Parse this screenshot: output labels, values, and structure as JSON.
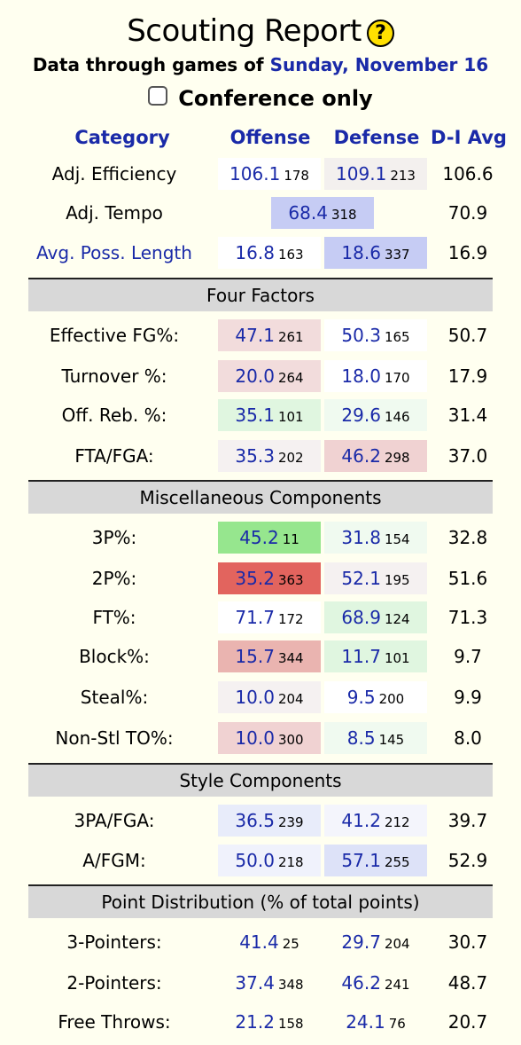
{
  "header": {
    "title": "Scouting Report",
    "help_icon_glyph": "?",
    "subtitle_prefix": "Data through games of",
    "subtitle_date": "Sunday, November 16",
    "conference_label": "Conference only",
    "conference_checked": false
  },
  "columns": {
    "category": "Category",
    "offense": "Offense",
    "defense": "Defense",
    "avg": "D-I Avg"
  },
  "top_rows": [
    {
      "label": "Adj. Efficiency",
      "off": {
        "value": "106.1",
        "rank": "178",
        "color": "#ffffff"
      },
      "def": {
        "value": "109.1",
        "rank": "213",
        "color": "#f3f0ee"
      },
      "avg": "106.6"
    },
    {
      "label": "Adj. Tempo",
      "tempo": {
        "value": "68.4",
        "rank": "318",
        "color": "#c6ccf4"
      },
      "avg": "70.9"
    },
    {
      "label": "Avg. Poss. Length",
      "off": {
        "value": "16.8",
        "rank": "163",
        "color": "#ffffff"
      },
      "def": {
        "value": "18.6",
        "rank": "337",
        "color": "#c6ccf4"
      },
      "avg": "16.9"
    }
  ],
  "sections": [
    {
      "title": "Four Factors",
      "rows": [
        {
          "label": "Effective FG%:",
          "off": {
            "value": "47.1",
            "rank": "261",
            "color": "#f2dcdc"
          },
          "def": {
            "value": "50.3",
            "rank": "165",
            "color": "#ffffff"
          },
          "avg": "50.7"
        },
        {
          "label": "Turnover %:",
          "off": {
            "value": "20.0",
            "rank": "264",
            "color": "#f2dcdc"
          },
          "def": {
            "value": "18.0",
            "rank": "170",
            "color": "#ffffff"
          },
          "avg": "17.9"
        },
        {
          "label": "Off. Reb. %:",
          "off": {
            "value": "35.1",
            "rank": "101",
            "color": "#e0f6e0"
          },
          "def": {
            "value": "29.6",
            "rank": "146",
            "color": "#f0faf0"
          },
          "avg": "31.4"
        },
        {
          "label": "FTA/FGA:",
          "off": {
            "value": "35.3",
            "rank": "202",
            "color": "#f5f1f1"
          },
          "def": {
            "value": "46.2",
            "rank": "298",
            "color": "#f0d2d2"
          },
          "avg": "37.0"
        }
      ]
    },
    {
      "title": "Miscellaneous Components",
      "rows": [
        {
          "label": "3P%:",
          "off": {
            "value": "45.2",
            "rank": "11",
            "color": "#96e68e"
          },
          "def": {
            "value": "31.8",
            "rank": "154",
            "color": "#f0faf0"
          },
          "avg": "32.8"
        },
        {
          "label": "2P%:",
          "off": {
            "value": "35.2",
            "rank": "363",
            "color": "#e2645e"
          },
          "def": {
            "value": "52.1",
            "rank": "195",
            "color": "#f5f1f1"
          },
          "avg": "51.6"
        },
        {
          "label": "FT%:",
          "off": {
            "value": "71.7",
            "rank": "172",
            "color": "#ffffff"
          },
          "def": {
            "value": "68.9",
            "rank": "124",
            "color": "#e0f6e0"
          },
          "avg": "71.3"
        },
        {
          "label": "Block%:",
          "off": {
            "value": "15.7",
            "rank": "344",
            "color": "#eab4b0"
          },
          "def": {
            "value": "11.7",
            "rank": "101",
            "color": "#e0f6e0"
          },
          "avg": "9.7"
        },
        {
          "label": "Steal%:",
          "off": {
            "value": "10.0",
            "rank": "204",
            "color": "#f5f1f1"
          },
          "def": {
            "value": "9.5",
            "rank": "200",
            "color": "#ffffff"
          },
          "avg": "9.9"
        },
        {
          "label": "Non-Stl TO%:",
          "off": {
            "value": "10.0",
            "rank": "300",
            "color": "#f0d2d2"
          },
          "def": {
            "value": "8.5",
            "rank": "145",
            "color": "#f0faf0"
          },
          "avg": "8.0"
        }
      ]
    },
    {
      "title": "Style Components",
      "rows": [
        {
          "label": "3PA/FGA:",
          "off": {
            "value": "36.5",
            "rank": "239",
            "color": "#e8ecfa"
          },
          "def": {
            "value": "41.2",
            "rank": "212",
            "color": "#f4f5fc"
          },
          "avg": "39.7"
        },
        {
          "label": "A/FGM:",
          "off": {
            "value": "50.0",
            "rank": "218",
            "color": "#f0f2fc"
          },
          "def": {
            "value": "57.1",
            "rank": "255",
            "color": "#dde2f8"
          },
          "avg": "52.9"
        }
      ]
    },
    {
      "title": "Point Distribution (% of total points)",
      "rows": [
        {
          "label": "3-Pointers:",
          "off": {
            "value": "41.4",
            "rank": "25",
            "color": "transparent"
          },
          "def": {
            "value": "29.7",
            "rank": "204",
            "color": "transparent"
          },
          "avg": "30.7"
        },
        {
          "label": "2-Pointers:",
          "off": {
            "value": "37.4",
            "rank": "348",
            "color": "transparent"
          },
          "def": {
            "value": "46.2",
            "rank": "241",
            "color": "transparent"
          },
          "avg": "48.7"
        },
        {
          "label": "Free Throws:",
          "off": {
            "value": "21.2",
            "rank": "158",
            "color": "transparent"
          },
          "def": {
            "value": "24.1",
            "rank": "76",
            "color": "transparent"
          },
          "avg": "20.7"
        }
      ]
    }
  ]
}
